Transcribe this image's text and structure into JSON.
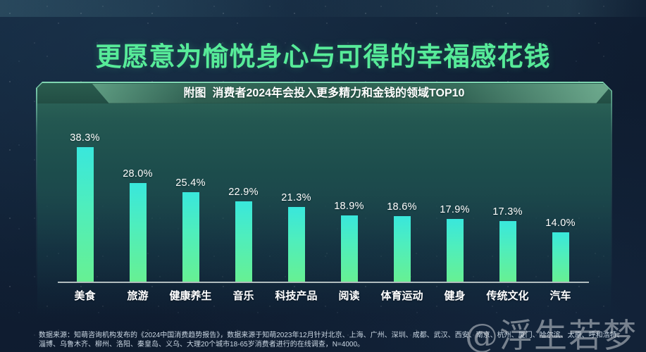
{
  "page": {
    "title": "更愿意为愉悦身心与可得的幸福感花钱",
    "watermark": "@浮生若梦"
  },
  "panel": {
    "caption": "附图  消费者2024年会投入更多精力和金钱的领域TOP10"
  },
  "chart_data": {
    "type": "bar",
    "title": "消费者2024年会投入更多精力和金钱的领域TOP10",
    "categories": [
      "美食",
      "旅游",
      "健康养生",
      "音乐",
      "科技产品",
      "阅读",
      "体育运动",
      "健身",
      "传统文化",
      "汽车"
    ],
    "values": [
      38.3,
      28.0,
      25.4,
      22.9,
      21.3,
      18.9,
      18.6,
      17.9,
      17.3,
      14.0
    ],
    "value_labels": [
      "38.3%",
      "28.0%",
      "25.4%",
      "22.9%",
      "21.3%",
      "18.9%",
      "18.6%",
      "17.9%",
      "17.3%",
      "14.0%"
    ],
    "unit": "%",
    "ylim": [
      0,
      40
    ],
    "grid": false,
    "legend": false,
    "bar_color_top": "#39e7dc",
    "bar_color_bottom": "#67f093"
  },
  "footer": {
    "line1": "数据来源：知萌咨询机构发布的《2024中国消费趋势报告》，数据来源于知萌2023年12月针对北京、上海、广州、深圳、成都、武汉、西安、南京、杭州、厦门、哈尔滨、太原、呼和浩特、",
    "line2": "淄博、乌鲁木齐、柳州、洛阳、秦皇岛、义乌、大理20个城市18-65岁消费者进行的在线调查，N=4000。"
  },
  "colors": {
    "title_green": "#57eb99",
    "background_navy": "#0f1d31",
    "panel_green": "#2a6b58",
    "axis": "#c2cccc",
    "text_white": "#ffffff"
  }
}
